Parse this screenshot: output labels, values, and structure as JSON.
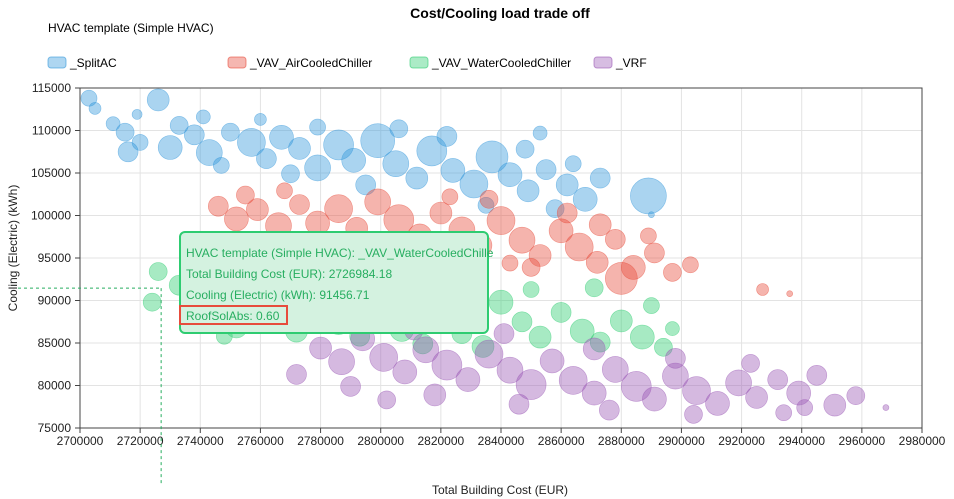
{
  "chart_data": {
    "type": "scatter",
    "title": "Cost/Cooling load trade off",
    "legend_title": "HVAC template (Simple HVAC)",
    "legend_position": "top-left",
    "xlabel": "Total Building Cost (EUR)",
    "ylabel": "Cooling (Electric) (kWh)",
    "xlim": [
      2700000,
      2980000
    ],
    "ylim": [
      75000,
      115000
    ],
    "x_ticks": [
      2700000,
      2720000,
      2740000,
      2760000,
      2780000,
      2800000,
      2820000,
      2840000,
      2860000,
      2880000,
      2900000,
      2920000,
      2940000,
      2960000,
      2980000
    ],
    "y_ticks": [
      75000,
      80000,
      85000,
      90000,
      95000,
      100000,
      105000,
      110000,
      115000
    ],
    "grid": true,
    "series": [
      {
        "name": "_SplitAC",
        "color": "#3498db",
        "points": [
          [
            2703000,
            113800,
            8
          ],
          [
            2711000,
            110800,
            7
          ],
          [
            2705000,
            112600,
            6
          ],
          [
            2715000,
            109800,
            9
          ],
          [
            2720000,
            108600,
            8
          ],
          [
            2726000,
            113600,
            11
          ],
          [
            2730000,
            108000,
            12
          ],
          [
            2738000,
            109500,
            10
          ],
          [
            2743000,
            107400,
            13
          ],
          [
            2750000,
            109800,
            9
          ],
          [
            2757000,
            108600,
            14
          ],
          [
            2762000,
            106700,
            10
          ],
          [
            2767000,
            109200,
            12
          ],
          [
            2773000,
            107900,
            11
          ],
          [
            2779000,
            105600,
            13
          ],
          [
            2786000,
            108300,
            15
          ],
          [
            2791000,
            106500,
            12
          ],
          [
            2799000,
            108800,
            17
          ],
          [
            2805000,
            106100,
            13
          ],
          [
            2812000,
            104400,
            11
          ],
          [
            2817000,
            107600,
            15
          ],
          [
            2824000,
            105300,
            12
          ],
          [
            2831000,
            103700,
            14
          ],
          [
            2837000,
            106900,
            16
          ],
          [
            2843000,
            104800,
            12
          ],
          [
            2849000,
            102900,
            11
          ],
          [
            2855000,
            105400,
            10
          ],
          [
            2862000,
            103600,
            11
          ],
          [
            2868000,
            101900,
            12
          ],
          [
            2873000,
            104400,
            10
          ],
          [
            2889000,
            102300,
            18
          ],
          [
            2716000,
            107500,
            10
          ],
          [
            2733000,
            110600,
            9
          ],
          [
            2747000,
            105900,
            8
          ],
          [
            2770000,
            104900,
            9
          ],
          [
            2795000,
            103600,
            10
          ],
          [
            2822000,
            109300,
            10
          ],
          [
            2848000,
            107800,
            9
          ],
          [
            2864000,
            106100,
            8
          ],
          [
            2741000,
            111600,
            7
          ],
          [
            2779000,
            110400,
            8
          ],
          [
            2806000,
            110200,
            9
          ],
          [
            2835000,
            101200,
            8
          ],
          [
            2858000,
            100800,
            9
          ],
          [
            2890000,
            100100,
            3
          ],
          [
            2719000,
            111900,
            5
          ],
          [
            2760000,
            111300,
            6
          ],
          [
            2853000,
            109700,
            7
          ]
        ]
      },
      {
        "name": "_VAV_AirCooledChiller",
        "color": "#e74c3c",
        "points": [
          [
            2746000,
            101100,
            10
          ],
          [
            2752000,
            99600,
            12
          ],
          [
            2759000,
            100700,
            11
          ],
          [
            2766000,
            98800,
            13
          ],
          [
            2773000,
            101300,
            10
          ],
          [
            2779000,
            99100,
            12
          ],
          [
            2786000,
            100800,
            14
          ],
          [
            2792000,
            98500,
            11
          ],
          [
            2799000,
            101600,
            13
          ],
          [
            2806000,
            99500,
            15
          ],
          [
            2813000,
            97600,
            12
          ],
          [
            2820000,
            100300,
            11
          ],
          [
            2827000,
            98300,
            13
          ],
          [
            2833000,
            96500,
            12
          ],
          [
            2840000,
            99400,
            14
          ],
          [
            2847000,
            97100,
            13
          ],
          [
            2853000,
            95300,
            11
          ],
          [
            2860000,
            98200,
            12
          ],
          [
            2866000,
            96300,
            14
          ],
          [
            2872000,
            94500,
            11
          ],
          [
            2878000,
            97200,
            10
          ],
          [
            2884000,
            93900,
            12
          ],
          [
            2891000,
            95600,
            10
          ],
          [
            2897000,
            93300,
            9
          ],
          [
            2903000,
            94200,
            8
          ],
          [
            2880000,
            92600,
            16
          ],
          [
            2873000,
            98900,
            11
          ],
          [
            2755000,
            102400,
            9
          ],
          [
            2783000,
            96900,
            9
          ],
          [
            2810000,
            95900,
            10
          ],
          [
            2836000,
            101900,
            9
          ],
          [
            2862000,
            100300,
            10
          ],
          [
            2850000,
            93900,
            9
          ],
          [
            2889000,
            97600,
            8
          ],
          [
            2927000,
            91300,
            6
          ],
          [
            2936000,
            90800,
            3
          ],
          [
            2768000,
            102900,
            8
          ],
          [
            2823000,
            102200,
            8
          ],
          [
            2795000,
            93600,
            7
          ],
          [
            2843000,
            94400,
            8
          ]
        ]
      },
      {
        "name": "_VAV_WaterCooledChiller",
        "color": "#2ecc71",
        "points": [
          [
            2726000,
            93400,
            9
          ],
          [
            2733000,
            91800,
            10
          ],
          [
            2740000,
            90500,
            11
          ],
          [
            2746000,
            88700,
            10
          ],
          [
            2752000,
            86900,
            11
          ],
          [
            2759000,
            89900,
            9
          ],
          [
            2765000,
            88300,
            10
          ],
          [
            2772000,
            86400,
            11
          ],
          [
            2779000,
            89100,
            10
          ],
          [
            2786000,
            87400,
            12
          ],
          [
            2793000,
            85800,
            10
          ],
          [
            2800000,
            88700,
            11
          ],
          [
            2807000,
            86600,
            12
          ],
          [
            2814000,
            84900,
            10
          ],
          [
            2820000,
            87800,
            11
          ],
          [
            2827000,
            86100,
            10
          ],
          [
            2834000,
            84600,
            11
          ],
          [
            2840000,
            89800,
            12
          ],
          [
            2847000,
            87500,
            10
          ],
          [
            2853000,
            85700,
            11
          ],
          [
            2860000,
            88600,
            10
          ],
          [
            2867000,
            86400,
            12
          ],
          [
            2873000,
            85100,
            10
          ],
          [
            2880000,
            87600,
            11
          ],
          [
            2887000,
            85700,
            12
          ],
          [
            2894000,
            84500,
            9
          ],
          [
            2737000,
            94000,
            10
          ],
          [
            2724000,
            89800,
            9
          ],
          [
            2755000,
            92300,
            9
          ],
          [
            2804000,
            91200,
            9
          ],
          [
            2830000,
            91500,
            10
          ],
          [
            2850000,
            91300,
            8
          ],
          [
            2871000,
            91500,
            9
          ],
          [
            2890000,
            89400,
            8
          ],
          [
            2897000,
            86700,
            7
          ],
          [
            2748000,
            85800,
            8
          ]
        ]
      },
      {
        "name": "_VRF",
        "color": "#9b59b6",
        "points": [
          [
            2780000,
            84400,
            11
          ],
          [
            2787000,
            82800,
            13
          ],
          [
            2794000,
            85500,
            12
          ],
          [
            2801000,
            83300,
            14
          ],
          [
            2808000,
            81600,
            12
          ],
          [
            2815000,
            84200,
            13
          ],
          [
            2822000,
            82400,
            15
          ],
          [
            2829000,
            80700,
            12
          ],
          [
            2836000,
            83700,
            14
          ],
          [
            2843000,
            81800,
            13
          ],
          [
            2850000,
            80100,
            15
          ],
          [
            2857000,
            82900,
            12
          ],
          [
            2864000,
            80600,
            14
          ],
          [
            2871000,
            79100,
            12
          ],
          [
            2878000,
            81900,
            13
          ],
          [
            2885000,
            79900,
            15
          ],
          [
            2891000,
            78400,
            12
          ],
          [
            2898000,
            81100,
            13
          ],
          [
            2905000,
            79400,
            14
          ],
          [
            2912000,
            77900,
            12
          ],
          [
            2919000,
            80300,
            13
          ],
          [
            2925000,
            78600,
            11
          ],
          [
            2932000,
            80700,
            10
          ],
          [
            2939000,
            79100,
            12
          ],
          [
            2945000,
            81200,
            10
          ],
          [
            2951000,
            77700,
            11
          ],
          [
            2958000,
            78800,
            9
          ],
          [
            2790000,
            79900,
            10
          ],
          [
            2818000,
            78900,
            11
          ],
          [
            2846000,
            77800,
            10
          ],
          [
            2871000,
            84300,
            11
          ],
          [
            2898000,
            83200,
            10
          ],
          [
            2923000,
            82600,
            9
          ],
          [
            2772000,
            81300,
            10
          ],
          [
            2811000,
            86400,
            9
          ],
          [
            2841000,
            86100,
            10
          ],
          [
            2876000,
            77100,
            10
          ],
          [
            2904000,
            76600,
            9
          ],
          [
            2941000,
            77400,
            8
          ],
          [
            2968000,
            77400,
            3
          ],
          [
            2802000,
            78300,
            9
          ],
          [
            2934000,
            76800,
            8
          ]
        ]
      }
    ],
    "crosshair": {
      "x": 2726984.18,
      "y": 91456.71
    },
    "tooltip": {
      "series_line": "HVAC template (Simple HVAC): _VAV_WaterCooledChille",
      "cost_line": "Total Building Cost (EUR): 2726984.18",
      "cooling_line": "Cooling (Electric) (kWh): 91456.71",
      "roof_line": "RoofSolAbs: 0.60",
      "color": "#27ae60",
      "highlight_color": "#e74c3c"
    }
  }
}
